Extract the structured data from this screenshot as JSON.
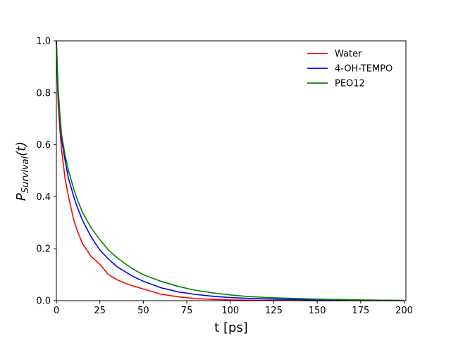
{
  "chart_data": {
    "type": "line",
    "title": "",
    "xlabel": "t [ps]",
    "ylabel_main": "P",
    "ylabel_sub": "Survival",
    "ylabel_arg": "(t)",
    "xlim": [
      0,
      201
    ],
    "ylim": [
      0,
      1.0
    ],
    "xticks": [
      0,
      25,
      50,
      75,
      100,
      125,
      150,
      175,
      200
    ],
    "yticks": [
      0.0,
      0.2,
      0.4,
      0.6,
      0.8,
      1.0
    ],
    "xtick_labels": [
      "0",
      "25",
      "50",
      "75",
      "100",
      "125",
      "150",
      "175",
      "200"
    ],
    "ytick_labels": [
      "0.0",
      "0.2",
      "0.4",
      "0.6",
      "0.8",
      "1.0"
    ],
    "grid": false,
    "legend_position": "top-right",
    "x": [
      0,
      1,
      2,
      3,
      5,
      7,
      10,
      12,
      15,
      20,
      25,
      30,
      35,
      40,
      45,
      50,
      60,
      70,
      80,
      90,
      100,
      110,
      125,
      150,
      175,
      200
    ],
    "series": [
      {
        "name": "Water",
        "color": "#ff0000",
        "values": [
          1.0,
          0.76,
          0.66,
          0.58,
          0.47,
          0.4,
          0.31,
          0.27,
          0.22,
          0.17,
          0.14,
          0.1,
          0.08,
          0.066,
          0.055,
          0.045,
          0.025,
          0.015,
          0.008,
          0.005,
          0.003,
          0.002,
          0.001,
          0.0,
          0.0,
          0.0
        ]
      },
      {
        "name": "4-OH-TEMPO",
        "color": "#0000ff",
        "values": [
          1.0,
          0.8,
          0.7,
          0.62,
          0.54,
          0.47,
          0.4,
          0.36,
          0.31,
          0.245,
          0.195,
          0.16,
          0.13,
          0.11,
          0.09,
          0.075,
          0.05,
          0.034,
          0.024,
          0.017,
          0.012,
          0.009,
          0.006,
          0.003,
          0.002,
          0.001
        ]
      },
      {
        "name": "PEO12",
        "color": "#008000",
        "values": [
          1.0,
          0.82,
          0.72,
          0.64,
          0.56,
          0.5,
          0.43,
          0.39,
          0.34,
          0.28,
          0.235,
          0.195,
          0.165,
          0.14,
          0.118,
          0.1,
          0.075,
          0.055,
          0.04,
          0.03,
          0.022,
          0.016,
          0.011,
          0.006,
          0.003,
          0.001
        ]
      }
    ]
  }
}
